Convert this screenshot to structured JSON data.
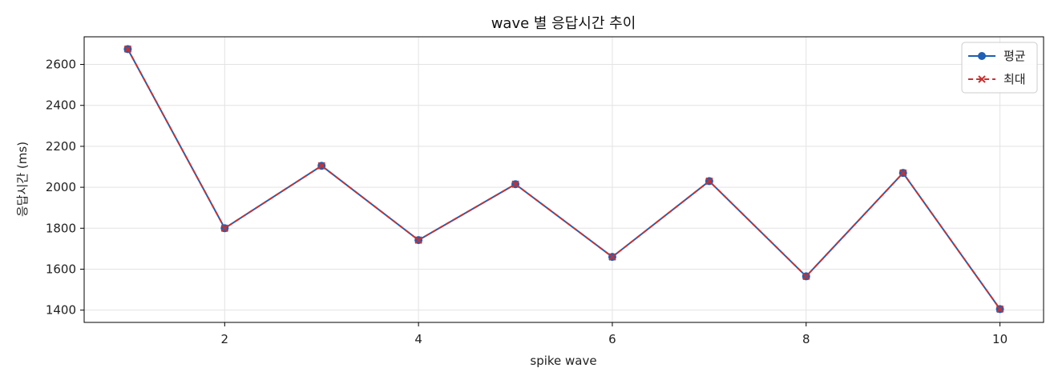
{
  "chart_data": {
    "type": "line",
    "title": "wave 별 응답시간 추이",
    "xlabel": "spike wave",
    "ylabel": "응답시간 (ms)",
    "x": [
      1,
      2,
      3,
      4,
      5,
      6,
      7,
      8,
      9,
      10
    ],
    "xlim": [
      0.55,
      10.45
    ],
    "ylim": [
      1340,
      2735
    ],
    "xticks": [
      2,
      4,
      6,
      8,
      10
    ],
    "yticks": [
      1400,
      1600,
      1800,
      2000,
      2200,
      2400,
      2600
    ],
    "grid": true,
    "legend_position": "top-right",
    "series": [
      {
        "name": "평균",
        "values": [
          2675,
          1800,
          2105,
          1742,
          2015,
          1660,
          2030,
          1565,
          2070,
          1405
        ],
        "color": "#1f5fb4",
        "line_style": "solid",
        "marker": "circle"
      },
      {
        "name": "최대",
        "values": [
          2675,
          1800,
          2105,
          1742,
          2015,
          1660,
          2030,
          1565,
          2070,
          1405
        ],
        "color": "#c83232",
        "line_style": "dashed",
        "marker": "x"
      }
    ]
  }
}
